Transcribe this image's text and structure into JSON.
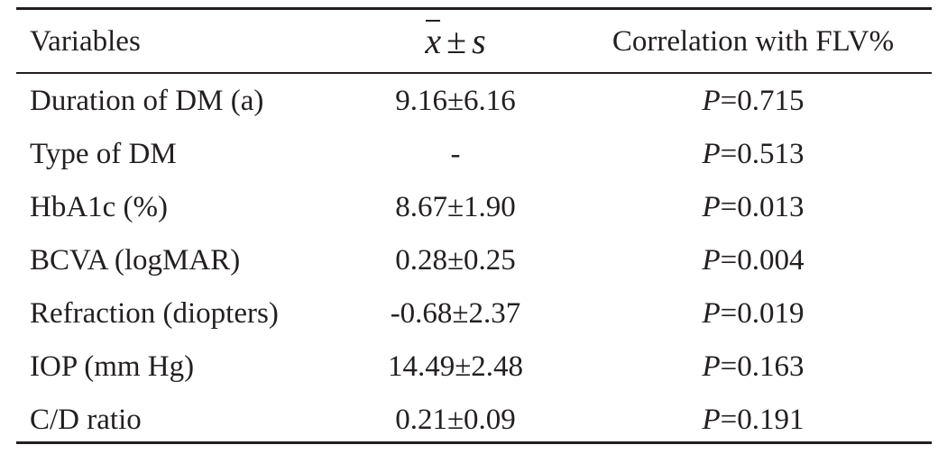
{
  "table": {
    "headers": {
      "variables": "Variables",
      "mean_var": "x",
      "mean_pm": "±",
      "mean_sd": "s",
      "correlation": "Correlation with FLV%"
    },
    "p_prefix": "P",
    "rows": [
      {
        "variable": "Duration of DM (a)",
        "value": "9.16±6.16",
        "p": "=0.715"
      },
      {
        "variable": "Type of DM",
        "value": "-",
        "p": "=0.513"
      },
      {
        "variable": "HbA1c (%)",
        "value": "8.67±1.90",
        "p": "=0.013"
      },
      {
        "variable": "BCVA (logMAR)",
        "value": "0.28±0.25",
        "p": "=0.004"
      },
      {
        "variable": "Refraction (diopters)",
        "value": "-0.68±2.37",
        "p": "=0.019"
      },
      {
        "variable": "IOP (mm Hg)",
        "value": "14.49±2.48",
        "p": "=0.163"
      },
      {
        "variable": "C/D ratio",
        "value": "0.21±0.09",
        "p": "=0.191"
      }
    ]
  }
}
